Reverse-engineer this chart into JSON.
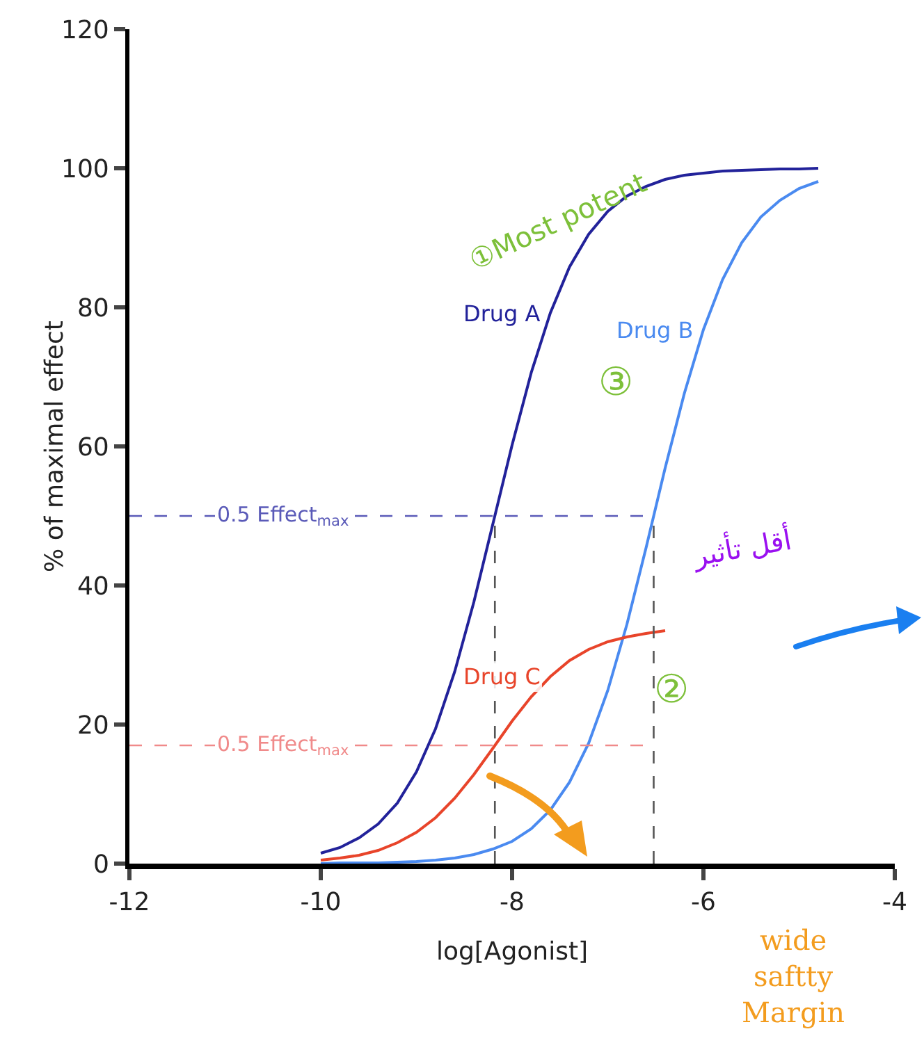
{
  "chart_data": {
    "type": "line",
    "xlabel": "log[Agonist]",
    "ylabel": "% of maximal effect",
    "x": [
      -10,
      -9.8,
      -9.6,
      -9.4,
      -9.2,
      -9.0,
      -8.8,
      -8.6,
      -8.4,
      -8.2,
      -8.0,
      -7.8,
      -7.6,
      -7.4,
      -7.2,
      -7.0,
      -6.8,
      -6.6,
      -6.4,
      -6.2,
      -6.0,
      -5.8,
      -5.6,
      -5.4,
      -5.2,
      -5.0,
      -4.8
    ],
    "series": [
      {
        "name": "Drug A",
        "color": "#22229a",
        "values": [
          1.5,
          2.3,
          3.7,
          5.7,
          8.7,
          13.2,
          19.4,
          27.6,
          37.6,
          48.9,
          60.2,
          70.6,
          79.2,
          85.8,
          90.5,
          93.8,
          96.0,
          97.4,
          98.4,
          99.0,
          99.3,
          99.6,
          99.7,
          99.8,
          99.9,
          99.9,
          100
        ]
      },
      {
        "name": "Drug B",
        "color": "#4a8af0",
        "values": [
          0.0,
          0.1,
          0.1,
          0.1,
          0.2,
          0.3,
          0.5,
          0.8,
          1.3,
          2.1,
          3.2,
          5.0,
          7.7,
          11.7,
          17.3,
          24.9,
          34.4,
          45.4,
          56.9,
          67.6,
          76.8,
          84.0,
          89.3,
          93.0,
          95.4,
          97.1,
          98.1
        ]
      },
      {
        "name": "Drug C",
        "color": "#e8442a",
        "values": [
          0.5,
          0.8,
          1.2,
          1.9,
          3.0,
          4.5,
          6.6,
          9.4,
          12.8,
          16.6,
          20.5,
          24.0,
          26.9,
          29.2,
          30.8,
          31.9,
          32.6,
          33.1,
          33.5,
          null,
          null,
          null,
          null,
          null,
          null,
          null,
          null
        ]
      }
    ],
    "xlim": [
      -12,
      -4
    ],
    "xticks": [
      -12,
      -10,
      -8,
      -6,
      -4
    ],
    "ylim": [
      0,
      120
    ],
    "yticks": [
      0,
      20,
      40,
      60,
      80,
      100,
      120
    ],
    "grid": false,
    "legend": false,
    "marker": "none",
    "line_style": "solid",
    "ref_lines": [
      {
        "axis": "y",
        "value": 50,
        "label": "0.5 Effect$_{max}$",
        "color": "#5a5ab8",
        "line_style": "dashed"
      },
      {
        "axis": "y",
        "value": 17,
        "label": "0.5 Effect$_{max}$",
        "color": "#f08a8a",
        "line_style": "dashed"
      },
      {
        "axis": "x",
        "value": -8.18,
        "color": "#555555",
        "line_style": "dashed"
      },
      {
        "axis": "x",
        "value": -6.52,
        "color": "#555555",
        "line_style": "dashed"
      }
    ],
    "annotations": [
      "①Most potent",
      "③",
      "②",
      "wide saftty Margin",
      "أقل تأثير"
    ]
  }
}
